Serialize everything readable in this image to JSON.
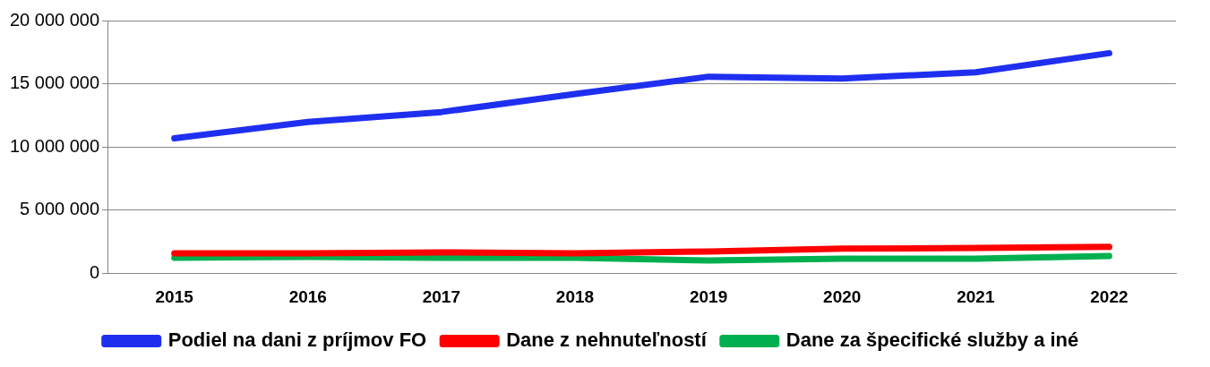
{
  "chart_data": {
    "type": "line",
    "categories": [
      "2015",
      "2016",
      "2017",
      "2018",
      "2019",
      "2020",
      "2021",
      "2022"
    ],
    "series": [
      {
        "name": "Podiel na dani z príjmov FO",
        "color": "#1f2ff0",
        "values": [
          10680000,
          11970000,
          12760000,
          14190000,
          15560000,
          15410000,
          15910000,
          17420000
        ]
      },
      {
        "name": "Dane z nehnuteľností",
        "color": "#ff0000",
        "values": [
          1580000,
          1580000,
          1650000,
          1580000,
          1720000,
          1940000,
          2000000,
          2080000
        ]
      },
      {
        "name": "Dane za špecifické služby a iné",
        "color": "#00b050",
        "values": [
          1220000,
          1290000,
          1220000,
          1220000,
          1000000,
          1150000,
          1150000,
          1360000
        ]
      }
    ],
    "ylim": [
      0,
      20000000
    ],
    "yticks": [
      {
        "value": 0,
        "label": "0"
      },
      {
        "value": 5000000,
        "label": "5 000 000"
      },
      {
        "value": 10000000,
        "label": "10 000 000"
      },
      {
        "value": 15000000,
        "label": "15 000 000"
      },
      {
        "value": 20000000,
        "label": "20 000 000"
      }
    ],
    "grid": "y",
    "legend": "bottom",
    "marker": "none",
    "line_style": "solid"
  }
}
